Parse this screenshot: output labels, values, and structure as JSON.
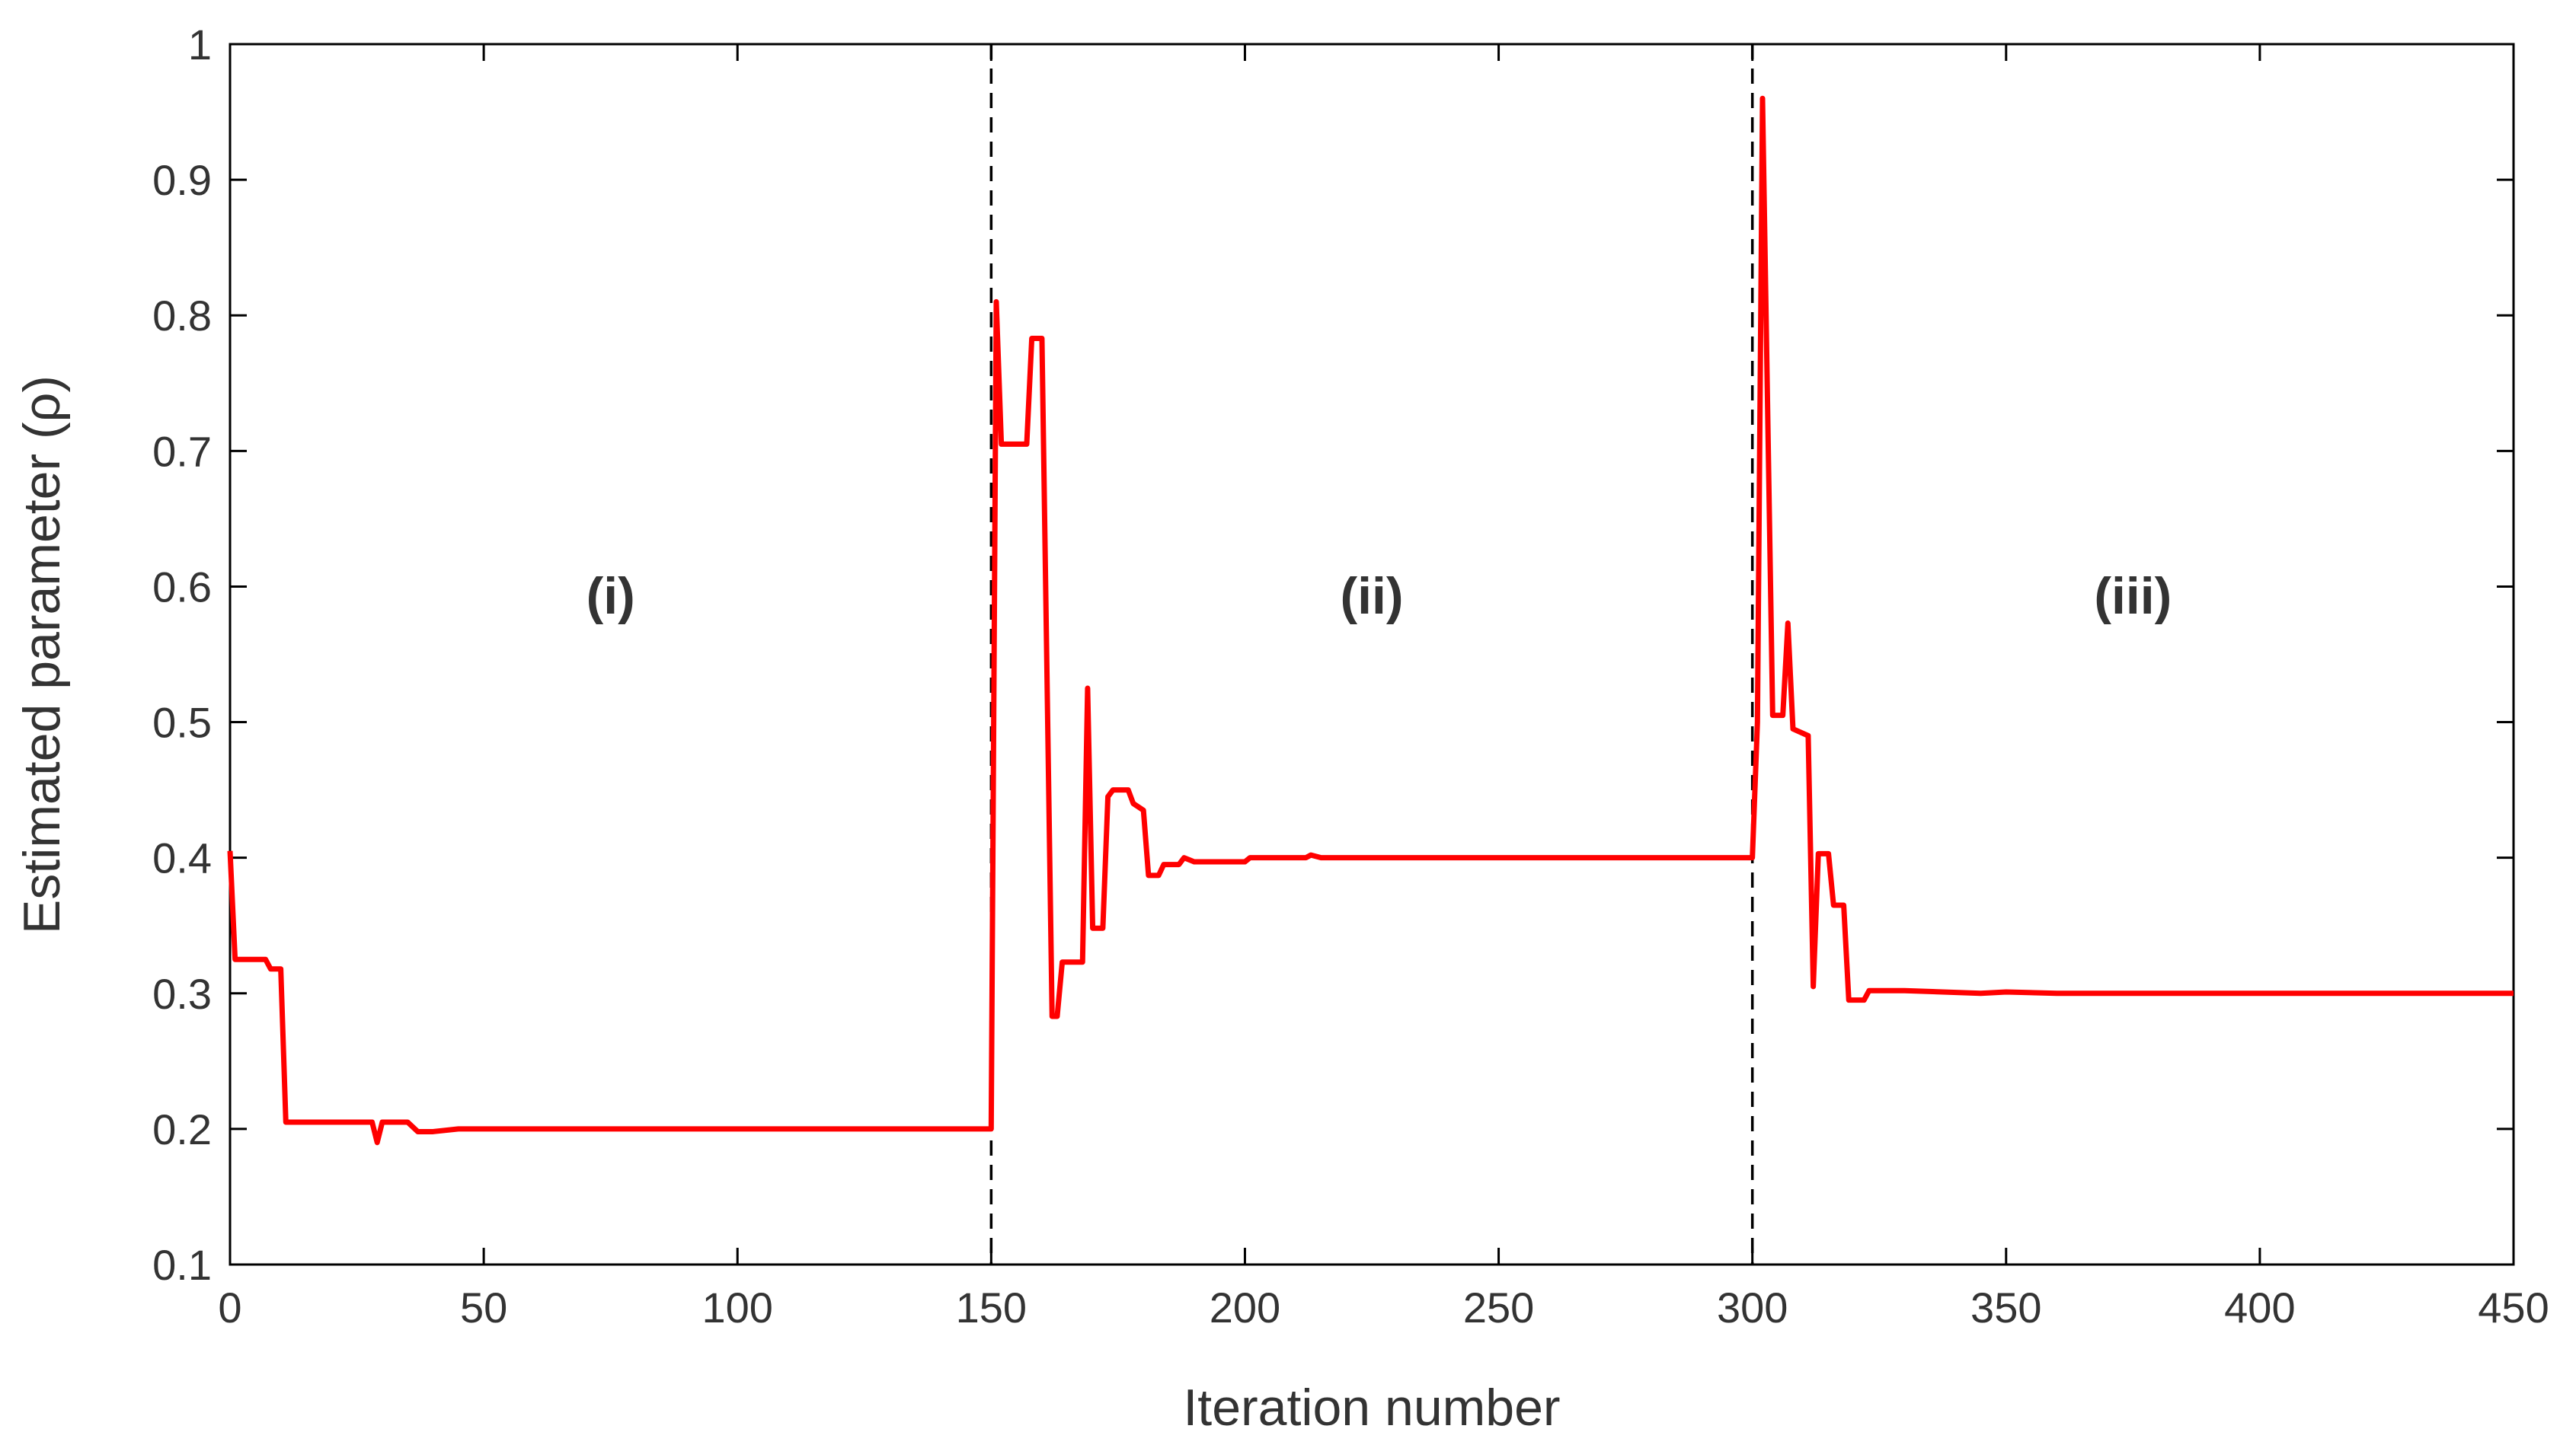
{
  "chart_data": {
    "type": "line",
    "x_label": "Iteration number",
    "y_label": "Estimated parameter (ρ)",
    "xlim": [
      0,
      450
    ],
    "xticks": [
      0,
      50,
      100,
      150,
      200,
      250,
      300,
      350,
      400,
      450
    ],
    "ylim": [
      0.1,
      1
    ],
    "yticks": [
      0.1,
      0.2,
      0.3,
      0.4,
      0.5,
      0.6,
      0.7,
      0.8,
      0.9,
      1
    ],
    "vlines": [
      150,
      300
    ],
    "annotations": [
      {
        "text": "(i)",
        "x": 75,
        "y": 0.58
      },
      {
        "text": "(ii)",
        "x": 225,
        "y": 0.58
      },
      {
        "text": "(iii)",
        "x": 375,
        "y": 0.58
      }
    ],
    "series": [
      {
        "color": "#ff0000",
        "x": [
          0,
          1,
          7,
          8,
          10,
          11,
          28,
          29,
          30,
          35,
          37,
          40,
          45,
          150,
          151,
          152,
          157,
          158,
          160,
          162,
          163,
          164,
          168,
          169,
          170,
          172,
          173,
          174,
          177,
          178,
          180,
          181,
          183,
          184,
          187,
          188,
          190,
          200,
          201,
          212,
          213,
          215,
          300,
          301,
          302,
          304,
          306,
          307,
          308,
          311,
          312,
          313,
          315,
          316,
          318,
          319,
          322,
          323,
          330,
          345,
          350,
          360,
          450
        ],
        "values": [
          0.405,
          0.325,
          0.325,
          0.318,
          0.318,
          0.205,
          0.205,
          0.19,
          0.205,
          0.205,
          0.198,
          0.198,
          0.2,
          0.2,
          0.81,
          0.705,
          0.705,
          0.783,
          0.783,
          0.283,
          0.283,
          0.323,
          0.323,
          0.525,
          0.348,
          0.348,
          0.445,
          0.45,
          0.45,
          0.44,
          0.435,
          0.387,
          0.387,
          0.395,
          0.395,
          0.4,
          0.397,
          0.397,
          0.4,
          0.4,
          0.402,
          0.4,
          0.4,
          0.5,
          0.96,
          0.505,
          0.505,
          0.573,
          0.495,
          0.49,
          0.305,
          0.403,
          0.403,
          0.365,
          0.365,
          0.295,
          0.295,
          0.302,
          0.302,
          0.3,
          0.301,
          0.3,
          0.3
        ]
      }
    ]
  }
}
